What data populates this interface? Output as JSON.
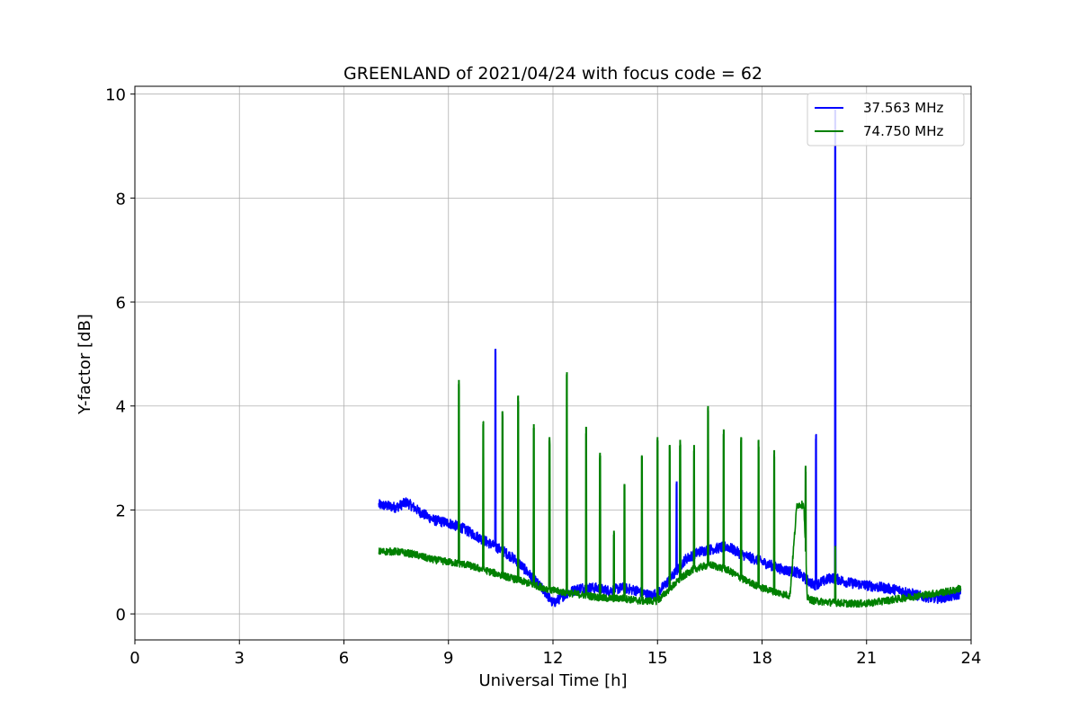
{
  "chart_data": {
    "type": "line",
    "title": "GREENLAND of 2021/04/24 with focus code = 62",
    "xlabel": "Universal Time [h]",
    "ylabel": "Y-factor [dB]",
    "xlim": [
      0,
      24
    ],
    "ylim": [
      -0.5,
      10.15
    ],
    "xticks": [
      0,
      3,
      6,
      9,
      12,
      15,
      18,
      21,
      24
    ],
    "yticks": [
      0,
      2,
      4,
      6,
      8,
      10
    ],
    "grid": true,
    "legend_position": "top-right",
    "series": [
      {
        "name": "37.563 MHz",
        "color": "#0000ff",
        "noise": 0.1,
        "x": [
          7.0,
          7.5,
          7.8,
          8.2,
          8.6,
          9.0,
          9.4,
          9.8,
          10.2,
          10.6,
          11.0,
          11.4,
          11.8,
          12.0,
          12.4,
          12.8,
          13.2,
          13.6,
          14.0,
          14.4,
          14.8,
          15.0,
          15.4,
          15.8,
          16.2,
          16.6,
          17.0,
          17.4,
          17.8,
          18.2,
          18.6,
          19.0,
          19.5,
          20.0,
          20.5,
          21.0,
          21.5,
          22.0,
          22.5,
          23.0,
          23.5,
          23.7
        ],
        "y": [
          2.1,
          2.05,
          2.15,
          1.95,
          1.8,
          1.75,
          1.65,
          1.5,
          1.35,
          1.2,
          1.0,
          0.7,
          0.4,
          0.2,
          0.4,
          0.5,
          0.5,
          0.45,
          0.5,
          0.45,
          0.35,
          0.4,
          0.7,
          1.05,
          1.2,
          1.25,
          1.3,
          1.15,
          1.05,
          0.95,
          0.85,
          0.8,
          0.55,
          0.7,
          0.6,
          0.55,
          0.5,
          0.45,
          0.35,
          0.3,
          0.35,
          0.4
        ],
        "spikes": [
          [
            10.35,
            5.1
          ],
          [
            15.55,
            2.55
          ],
          [
            19.55,
            3.45
          ],
          [
            20.1,
            9.7
          ]
        ]
      },
      {
        "name": "74.750 MHz",
        "color": "#008000",
        "noise": 0.07,
        "x": [
          7.0,
          7.5,
          8.0,
          8.5,
          9.0,
          9.5,
          10.0,
          10.5,
          11.0,
          11.5,
          12.0,
          12.5,
          13.0,
          13.5,
          14.0,
          14.5,
          15.0,
          15.3,
          15.7,
          16.0,
          16.5,
          17.0,
          17.5,
          18.0,
          18.5,
          18.8,
          19.0,
          19.2,
          19.3,
          19.5,
          20.0,
          20.5,
          21.0,
          21.5,
          22.0,
          22.5,
          23.0,
          23.5,
          23.7
        ],
        "y": [
          1.2,
          1.2,
          1.15,
          1.05,
          1.0,
          0.95,
          0.85,
          0.75,
          0.65,
          0.55,
          0.45,
          0.4,
          0.35,
          0.3,
          0.3,
          0.25,
          0.25,
          0.45,
          0.7,
          0.85,
          0.95,
          0.85,
          0.65,
          0.5,
          0.4,
          0.35,
          2.1,
          2.1,
          0.3,
          0.25,
          0.22,
          0.2,
          0.2,
          0.25,
          0.3,
          0.35,
          0.4,
          0.45,
          0.5
        ],
        "spikes": [
          [
            9.3,
            4.5
          ],
          [
            10.0,
            3.7
          ],
          [
            10.55,
            3.9
          ],
          [
            11.0,
            4.2
          ],
          [
            11.45,
            3.65
          ],
          [
            11.9,
            3.4
          ],
          [
            12.4,
            4.65
          ],
          [
            12.95,
            3.6
          ],
          [
            13.35,
            3.1
          ],
          [
            13.75,
            1.6
          ],
          [
            14.05,
            2.5
          ],
          [
            14.55,
            3.05
          ],
          [
            15.0,
            3.4
          ],
          [
            15.35,
            3.25
          ],
          [
            15.65,
            3.35
          ],
          [
            16.05,
            3.25
          ],
          [
            16.45,
            4.0
          ],
          [
            16.9,
            3.55
          ],
          [
            17.4,
            3.4
          ],
          [
            17.9,
            3.35
          ],
          [
            18.35,
            3.15
          ],
          [
            19.25,
            2.85
          ],
          [
            20.1,
            1.3
          ]
        ]
      }
    ]
  }
}
